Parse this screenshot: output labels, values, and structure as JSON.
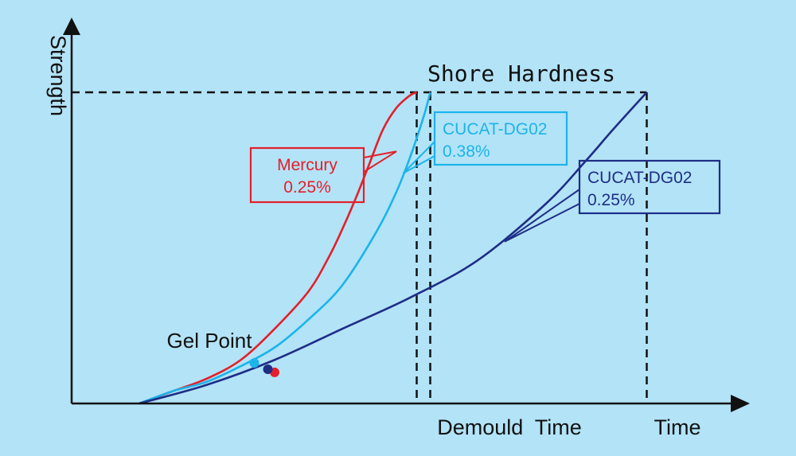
{
  "chart_data": {
    "type": "line",
    "title": "",
    "ylabel": "Strength",
    "xlabel": "Time",
    "axis_units": "qualitative (no numeric ticks)",
    "series": [
      {
        "name": "Mercury\n0.25%",
        "label_lines": [
          "Mercury",
          "0.25%"
        ],
        "color": "#e3202a",
        "x": [
          0.1,
          0.15,
          0.2,
          0.25,
          0.3,
          0.35,
          0.38,
          0.4,
          0.42,
          0.44,
          0.46,
          0.48,
          0.5,
          0.51
        ],
        "y": [
          0.0,
          0.04,
          0.08,
          0.14,
          0.24,
          0.36,
          0.47,
          0.56,
          0.66,
          0.77,
          0.88,
          0.95,
          0.99,
          1.0
        ],
        "gel_point": {
          "x": 0.3,
          "y": 0.1
        }
      },
      {
        "name": "CUCAT-DG02\n0.38%",
        "label_lines": [
          "CUCAT-DG02",
          "0.38%"
        ],
        "color": "#1cb4ea",
        "x": [
          0.1,
          0.15,
          0.2,
          0.25,
          0.3,
          0.35,
          0.4,
          0.45,
          0.48,
          0.5,
          0.52,
          0.53
        ],
        "y": [
          0.0,
          0.04,
          0.07,
          0.12,
          0.18,
          0.27,
          0.38,
          0.55,
          0.68,
          0.79,
          0.92,
          1.0
        ],
        "gel_point": {
          "x": 0.27,
          "y": 0.13
        }
      },
      {
        "name": "CUCAT-DG02\n0.25%",
        "label_lines": [
          "CUCAT-DG02",
          "0.25%"
        ],
        "color": "#1e2e86",
        "x": [
          0.1,
          0.2,
          0.3,
          0.4,
          0.5,
          0.6,
          0.7,
          0.76,
          0.8,
          0.85
        ],
        "y": [
          0.0,
          0.06,
          0.14,
          0.24,
          0.34,
          0.46,
          0.64,
          0.78,
          0.88,
          1.0
        ],
        "gel_point": {
          "x": 0.29,
          "y": 0.11
        }
      }
    ],
    "reference_lines": {
      "horizontal": {
        "label": "Shore Hardness",
        "y": 1.0
      },
      "vertical": [
        {
          "x": 0.51,
          "label": ""
        },
        {
          "x": 0.53,
          "label": "Demould  Time"
        },
        {
          "x": 0.85,
          "label": ""
        }
      ]
    },
    "annotations": [
      {
        "text": "Gel Point"
      },
      {
        "text": "Demould  Time"
      },
      {
        "text": "Shore Hardness"
      }
    ],
    "legend_placement": "callout boxes next to curves",
    "grid": false,
    "background": "#b3e3f7"
  }
}
